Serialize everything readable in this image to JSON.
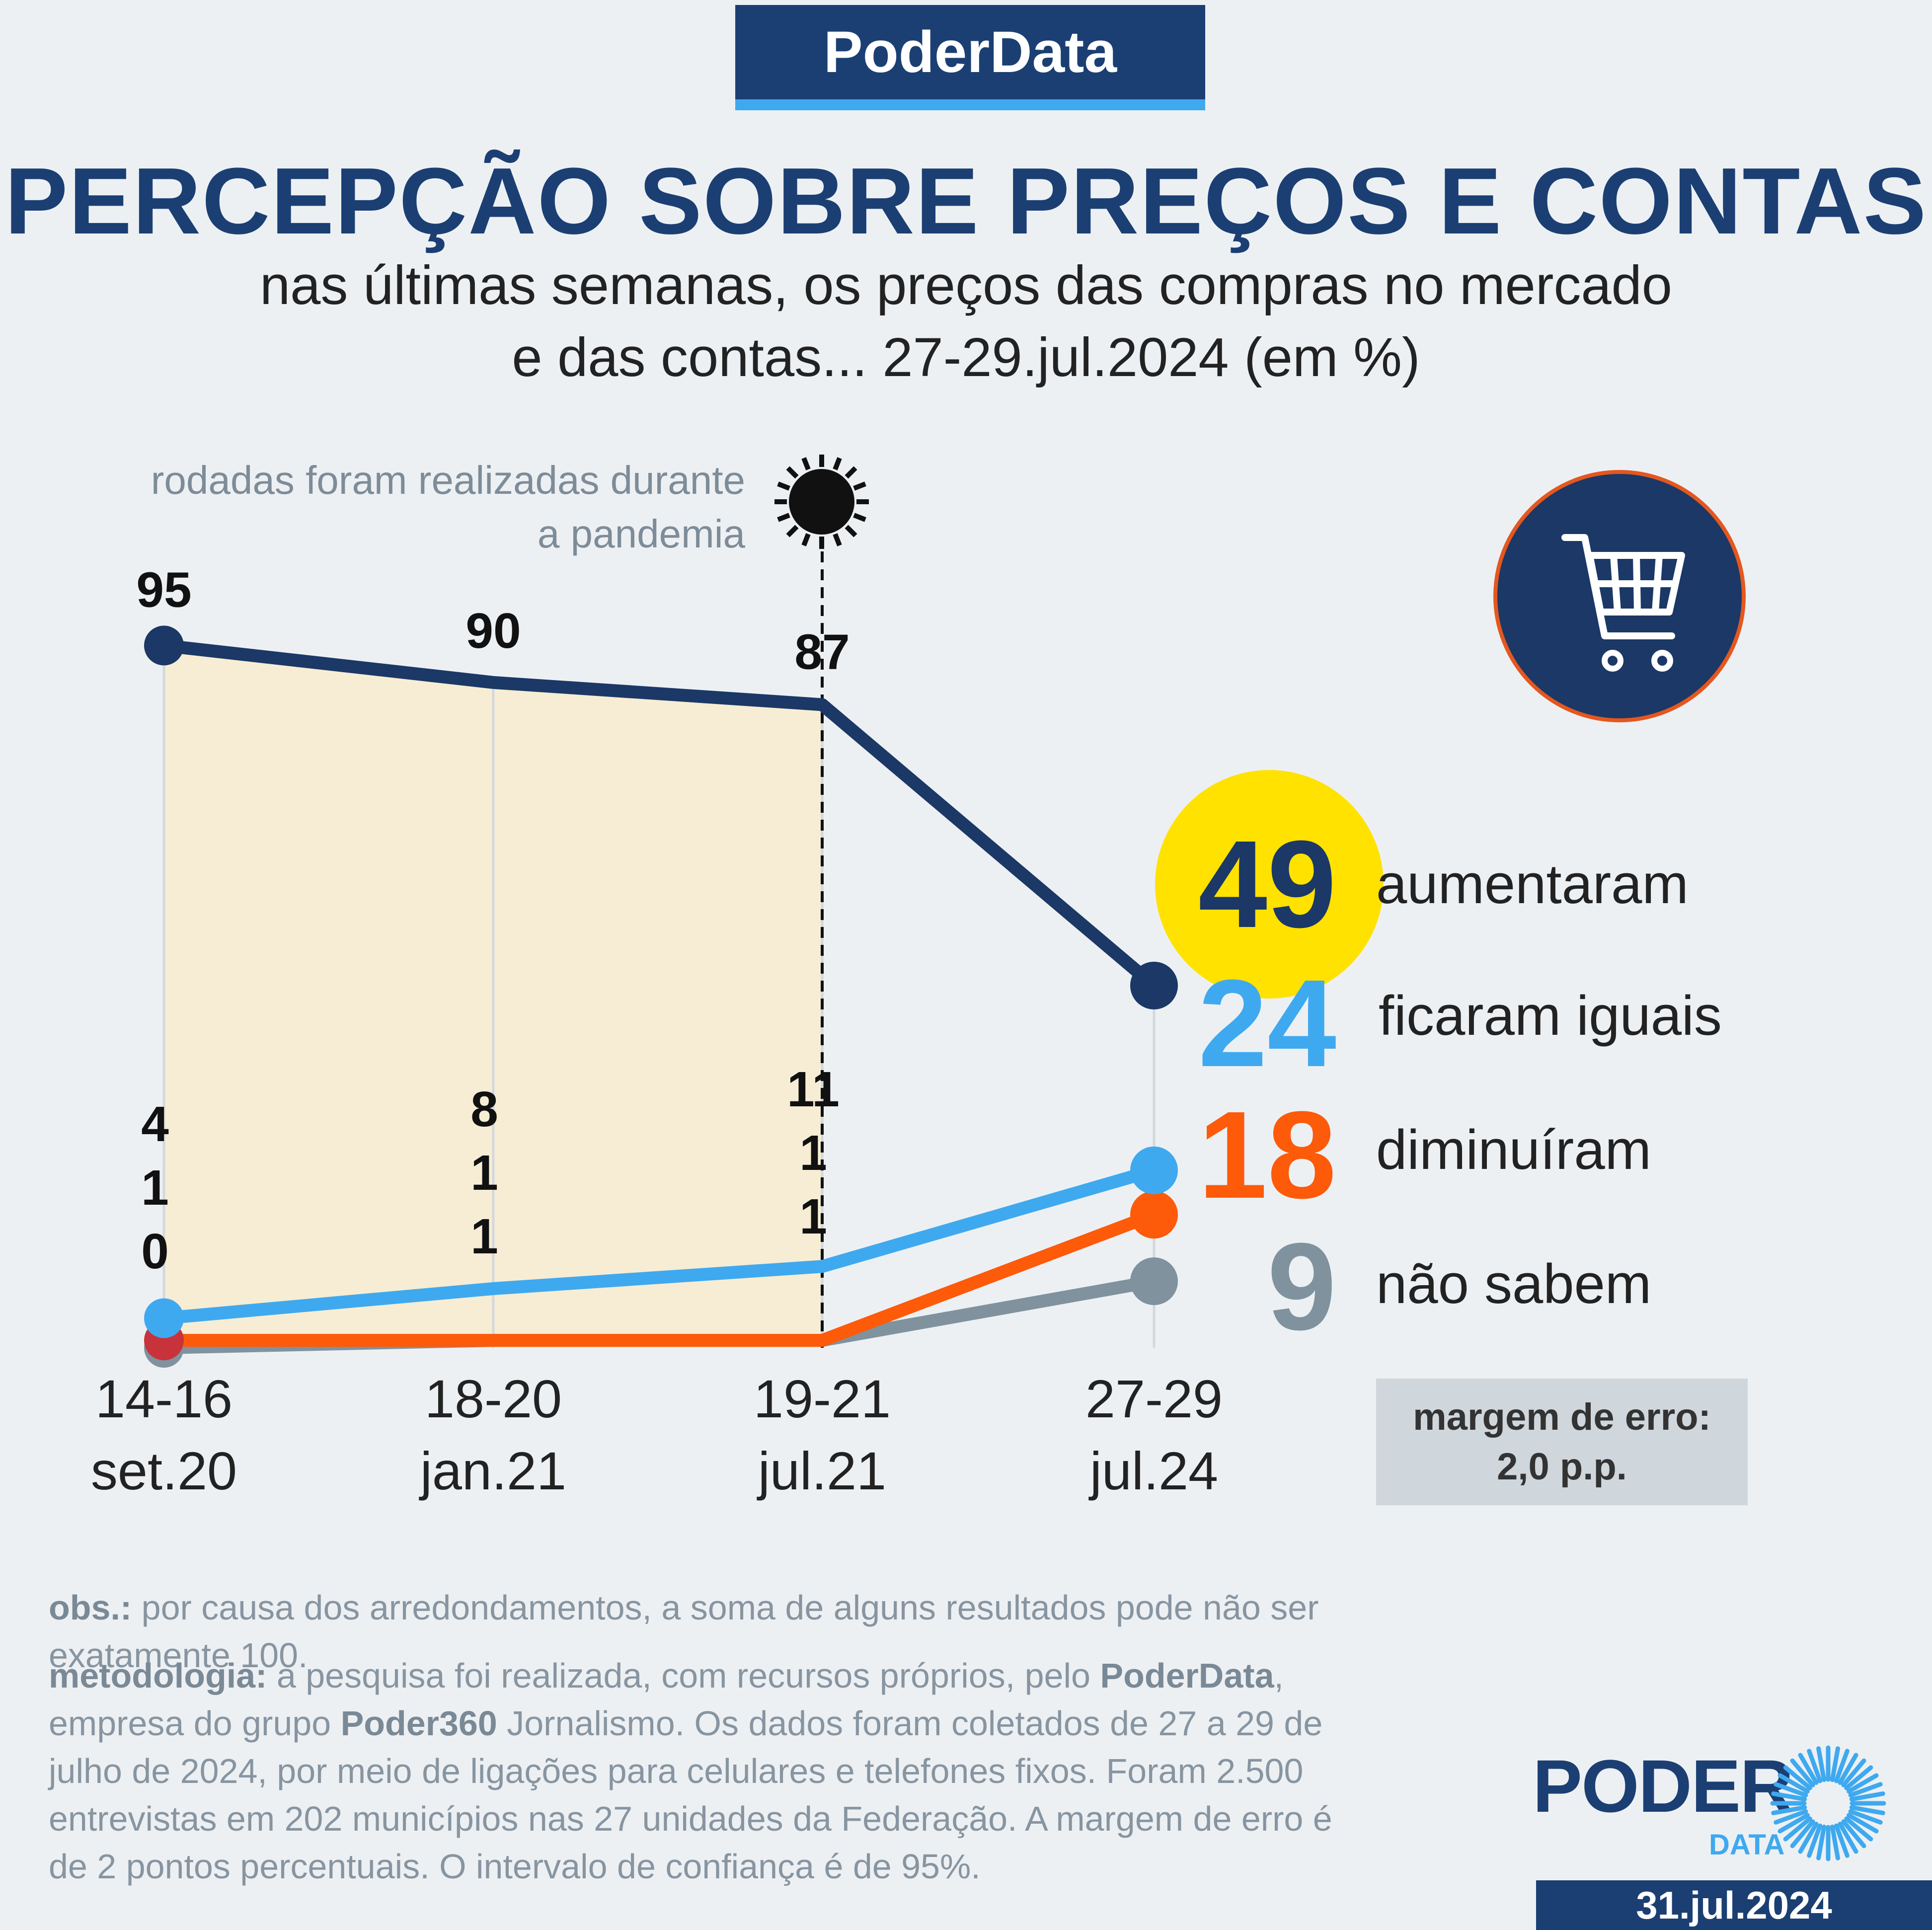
{
  "header": {
    "brand": "PoderData",
    "title": "PERCEPÇÃO SOBRE PREÇOS E CONTAS",
    "subtitle_line1": "nas últimas semanas, os preços das compras no mercado",
    "subtitle_line2": "e das contas... 27-29.jul.2024 (em %)"
  },
  "annotation": {
    "line1": "rodadas foram realizadas durante",
    "line2": "a pandemia",
    "icon": "virus-icon"
  },
  "cart_icon": "shopping-cart-icon",
  "colors": {
    "aumentaram": "#1b3866",
    "ficaram_iguais": "#3fa9ef",
    "diminuiram": "#fd5a0a",
    "nao_sabem": "#7f929e",
    "highlight": "#ffe200",
    "pandemic_shade": "#f6edd4"
  },
  "chart_data": {
    "type": "line",
    "title": "PERCEPÇÃO SOBRE PREÇOS E CONTAS",
    "categories": [
      {
        "line1": "14-16",
        "line2": "set.20"
      },
      {
        "line1": "18-20",
        "line2": "jan.21"
      },
      {
        "line1": "19-21",
        "line2": "jul.21"
      },
      {
        "line1": "27-29",
        "line2": "jul.24"
      }
    ],
    "ylim": [
      0,
      100
    ],
    "shaded_range": [
      0,
      2
    ],
    "series": [
      {
        "key": "aumentaram",
        "name": "aumentaram",
        "values": [
          95,
          90,
          87,
          49
        ]
      },
      {
        "key": "ficaram_iguais",
        "name": "ficaram iguais",
        "values": [
          4,
          8,
          11,
          24
        ]
      },
      {
        "key": "diminuiram",
        "name": "diminuíram",
        "values": [
          1,
          1,
          1,
          18
        ]
      },
      {
        "key": "nao_sabem",
        "name": "não sabem",
        "values": [
          0,
          1,
          1,
          9
        ]
      }
    ],
    "top_labels": [
      "95",
      "90",
      "87"
    ],
    "stack_labels": [
      [
        "4",
        "1",
        "0"
      ],
      [
        "8",
        "1",
        "1"
      ],
      [
        "11",
        "1",
        "1"
      ]
    ]
  },
  "legend": [
    {
      "value": "49",
      "label": "aumentaram"
    },
    {
      "value": "24",
      "label": "ficaram iguais"
    },
    {
      "value": "18",
      "label": "diminuíram"
    },
    {
      "value": "9",
      "label": "não sabem"
    }
  ],
  "margin": {
    "line1": "margem de erro:",
    "line2": "2,0 p.p."
  },
  "footer": {
    "obs_label": "obs.:",
    "obs_text": " por causa dos arredondamentos, a soma de alguns resultados pode não ser exatamente 100.",
    "method_label": "metodologia:",
    "method_1": " a pesquisa foi realizada, com recursos próprios, pelo ",
    "method_brand1": "PoderData",
    "method_2": ",",
    "method_3": "empresa do grupo ",
    "method_brand2": "Poder360",
    "method_4": " Jornalismo. Os dados foram coletados de 27 a 29 de",
    "method_5": "julho de 2024, por meio de ligações para celulares e telefones fixos. Foram 2.500",
    "method_6": "entrevistas em 202 municípios nas 27 unidades da Federação. A margem de erro é",
    "method_7": "de 2 pontos percentuais. O intervalo de confiança é de 95%."
  },
  "logo": {
    "word": "PODER",
    "sub": "DATA"
  },
  "date": "31.jul.2024"
}
